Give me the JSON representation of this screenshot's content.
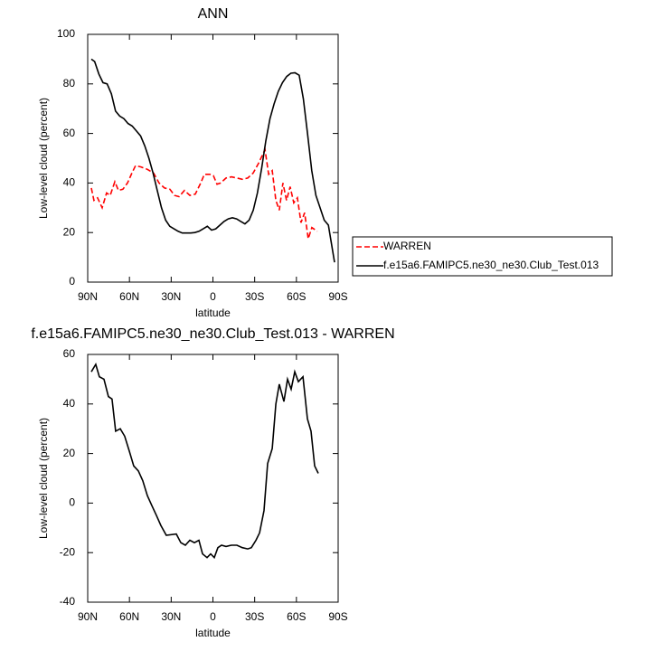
{
  "chart_data": [
    {
      "type": "line",
      "title": "ANN",
      "x_label": "latitude",
      "y_label": "Low-level cloud (percent)",
      "xlim": [
        90,
        -90
      ],
      "ylim": [
        0,
        100
      ],
      "xticks": [
        {
          "value": 90,
          "label": "90N"
        },
        {
          "value": 60,
          "label": "60N"
        },
        {
          "value": 30,
          "label": "30N"
        },
        0,
        {
          "value": -30,
          "label": "30S"
        },
        {
          "value": -60,
          "label": "60S"
        },
        {
          "value": -90,
          "label": "90S"
        }
      ],
      "yticks": [
        0,
        20,
        40,
        60,
        80,
        100
      ],
      "legend": "outside-right",
      "series": [
        {
          "name": "WARREN",
          "color": "#ff0000",
          "dash": true,
          "x": [
            87.4,
            85.5,
            82.9,
            79.6,
            76.4,
            73.8,
            70.5,
            67.9,
            64.7,
            61.4,
            58.2,
            55.6,
            51.7,
            47.1,
            42.6,
            38.7,
            34.8,
            30.9,
            27.6,
            24.4,
            20.5,
            16.6,
            12.7,
            8.8,
            6.2,
            2.3,
            -0.3,
            -2.9,
            -5.5,
            -9.4,
            -13.3,
            -17.2,
            -21.1,
            -25.0,
            -28.9,
            -32.8,
            -37.4,
            -40.0,
            -42.6,
            -45.2,
            -47.7,
            -50.3,
            -52.9,
            -55.5,
            -58.1,
            -60.7,
            -63.3,
            -65.9,
            -68.5,
            -71.1,
            -75.0
          ],
          "values": [
            38,
            33,
            34,
            30,
            36,
            35,
            40.5,
            37,
            37.5,
            40,
            44,
            47,
            46.5,
            45.5,
            44,
            40,
            38,
            37.5,
            35,
            34.5,
            37,
            35,
            35.5,
            40,
            43.5,
            43.5,
            43,
            39.5,
            40,
            42,
            42.5,
            42,
            41.5,
            42,
            44,
            48,
            53.5,
            43.5,
            45,
            33,
            29,
            40,
            33,
            38.5,
            32,
            34,
            24,
            28,
            17.5,
            22,
            20.5
          ]
        },
        {
          "name": "f.e15a6.FAMIPC5.ne30_ne30.Club_Test.013",
          "color": "#000000",
          "dash": false,
          "x": [
            87.4,
            85,
            82,
            79,
            76,
            73,
            70,
            67,
            64,
            61,
            58,
            55,
            52,
            49,
            46,
            43,
            40,
            37,
            34,
            31,
            28,
            25,
            22,
            19,
            16,
            13,
            10,
            7,
            4,
            1,
            -2,
            -5,
            -8,
            -11,
            -14,
            -17,
            -20,
            -23,
            -26,
            -29,
            -32,
            -35,
            -38,
            -41,
            -44,
            -47,
            -50,
            -53,
            -56,
            -59,
            -62,
            -65,
            -68,
            -71,
            -74,
            -77,
            -80,
            -83,
            -87.4
          ],
          "values": [
            90,
            89,
            84,
            80.5,
            80,
            76,
            69,
            67,
            66,
            64,
            63,
            61,
            59,
            55,
            50,
            44,
            37,
            30,
            25,
            22.5,
            21.5,
            20.5,
            19.8,
            19.8,
            19.8,
            20,
            20.5,
            21.5,
            22.5,
            21,
            21.5,
            23,
            24.5,
            25.5,
            26,
            25.5,
            24.5,
            23.5,
            25,
            29,
            36,
            46,
            57,
            66,
            72,
            77,
            80.5,
            83,
            84.3,
            84.5,
            83.5,
            74,
            60,
            45,
            35,
            30,
            25,
            23,
            8
          ]
        }
      ]
    },
    {
      "type": "line",
      "title": "f.e15a6.FAMIPC5.ne30_ne30.Club_Test.013 - WARREN",
      "x_label": "latitude",
      "y_label": "Low-level cloud (percent)",
      "xlim": [
        90,
        -90
      ],
      "ylim": [
        -40,
        60
      ],
      "xticks": [
        {
          "value": 90,
          "label": "90N"
        },
        {
          "value": 60,
          "label": "60N"
        },
        {
          "value": 30,
          "label": "30N"
        },
        0,
        {
          "value": -30,
          "label": "30S"
        },
        {
          "value": -60,
          "label": "60S"
        },
        {
          "value": -90,
          "label": "90S"
        }
      ],
      "yticks": [
        -40,
        -20,
        0,
        20,
        40,
        60
      ],
      "series": [
        {
          "color": "#000000",
          "dash": false,
          "x": [
            87.4,
            84.2,
            81.6,
            78.3,
            75.1,
            72.5,
            69.9,
            66.6,
            63.4,
            60.1,
            56.9,
            53.6,
            50.4,
            47.1,
            43.9,
            40.6,
            37.4,
            33.5,
            26.3,
            23.1,
            19.8,
            16.6,
            13.3,
            10.1,
            7.5,
            4.2,
            1.6,
            -1.0,
            -3.6,
            -6.2,
            -9.4,
            -13.3,
            -17.2,
            -21.1,
            -25.0,
            -27.6,
            -30.9,
            -33.5,
            -36.7,
            -39.3,
            -42.6,
            -45.2,
            -47.7,
            -51.0,
            -53.6,
            -56.2,
            -58.8,
            -61.4,
            -64.7,
            -67.9,
            -70.5,
            -73.1,
            -75.7
          ],
          "values": [
            53,
            56,
            51,
            50,
            43,
            42,
            29,
            30,
            27,
            21,
            15,
            13,
            9,
            3,
            -1,
            -5,
            -9,
            -13,
            -12.5,
            -16,
            -17,
            -15,
            -16,
            -15,
            -20.5,
            -22,
            -20.5,
            -22,
            -18,
            -17,
            -17.5,
            -17,
            -17,
            -18,
            -18.5,
            -18,
            -15,
            -12,
            -3,
            16,
            22,
            40,
            48,
            41,
            50,
            46,
            53,
            49,
            51,
            34,
            29,
            15,
            12
          ]
        }
      ]
    }
  ]
}
